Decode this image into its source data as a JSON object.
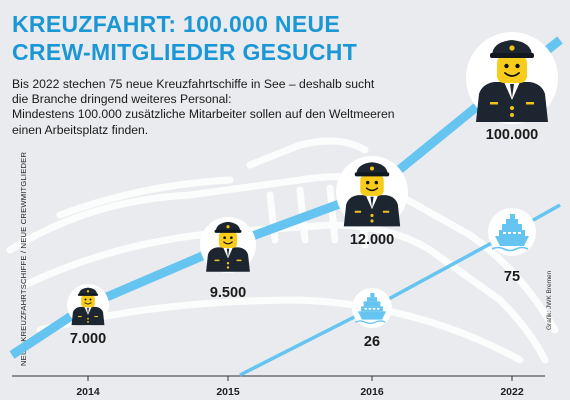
{
  "header": {
    "title_line1": "KREUZFAHRT: 100.000 NEUE",
    "title_line2": "CREW-MITGLIEDER GESUCHT",
    "subtitle_line1": "Bis 2022 stechen 75 neue Kreuzfahrtschiffe in See – deshalb sucht",
    "subtitle_line2": "die Branche dringend weiteres Personal:",
    "subtitle_line3": "Mindestens 100.000 zusätzliche Mitarbeiter sollen auf den Weltmeeren",
    "subtitle_line4": "einen Arbeitsplatz finden."
  },
  "credit": "Grafik: JWK Bremen",
  "colors": {
    "accent": "#1c97d5",
    "line": "#66c4f0",
    "background": "#e9ebee",
    "text": "#1a1a1a"
  },
  "chart_data": {
    "type": "line",
    "categories": [
      "2014",
      "2015",
      "2016",
      "2022"
    ],
    "ylabel": "NEUE KREUZFAHRTSCHIFFE / NEUE CREWMITGLIEDER",
    "series": [
      {
        "values": [
          7000,
          9500,
          12000,
          100000
        ],
        "labels": [
          "7.000",
          "9.500",
          "12.000",
          "100.000"
        ],
        "icon": "captain-minifigure-icon"
      },
      {
        "values": [
          null,
          null,
          26,
          75
        ],
        "labels": [
          "",
          "",
          "26",
          "75"
        ],
        "icon": "cruise-ship-icon"
      }
    ]
  }
}
